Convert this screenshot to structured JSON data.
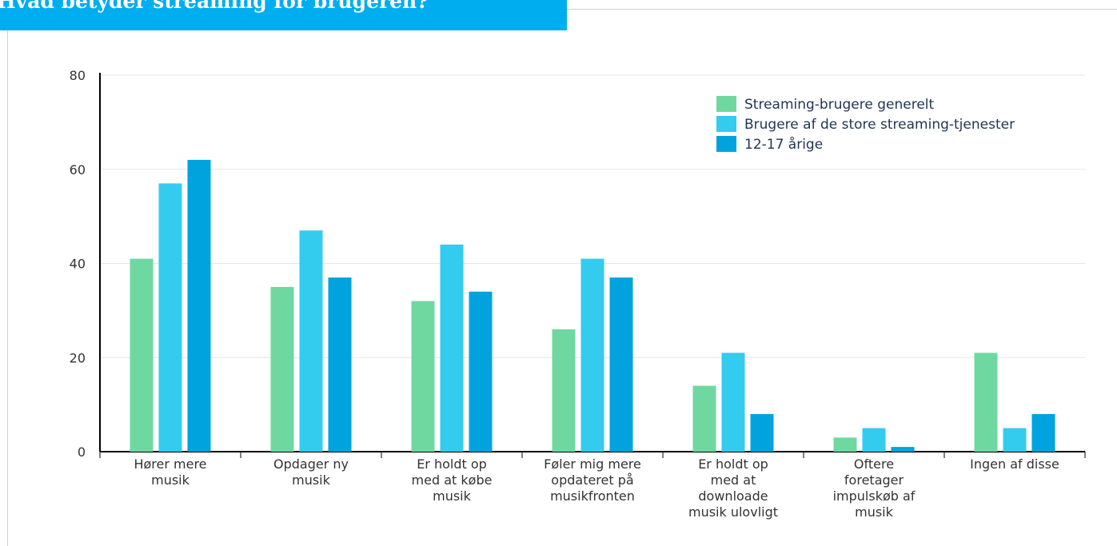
{
  "title": "Hvad betyder streaming for brugeren?",
  "colors": {
    "banner": "#00aeef"
  },
  "chart_data": {
    "type": "bar",
    "title": "",
    "xlabel": "",
    "ylabel": "",
    "ylim": [
      0,
      80
    ],
    "yticks": [
      0,
      20,
      40,
      60,
      80
    ],
    "grid": true,
    "legend_position": "top-right",
    "categories": [
      [
        "Hører mere",
        "musik"
      ],
      [
        "Opdager ny",
        "musik"
      ],
      [
        "Er holdt op",
        "med at købe",
        "musik"
      ],
      [
        "Føler mig mere",
        "opdateret på",
        "musikfronten"
      ],
      [
        "Er holdt op",
        "med at",
        "downloade",
        "musik ulovligt"
      ],
      [
        "Oftere",
        "foretager",
        "impulskøb af",
        "musik"
      ],
      [
        "Ingen af disse"
      ]
    ],
    "series": [
      {
        "name": "Streaming-brugere generelt",
        "color": "#6fd8a1",
        "values": [
          41,
          35,
          32,
          26,
          14,
          3,
          21
        ]
      },
      {
        "name": "Brugere af de store streaming-tjenester",
        "color": "#33ccee",
        "values": [
          57,
          47,
          44,
          41,
          21,
          5,
          5
        ]
      },
      {
        "name": "12-17 årige",
        "color": "#00a3dd",
        "values": [
          62,
          37,
          34,
          37,
          8,
          1,
          8
        ]
      }
    ]
  }
}
